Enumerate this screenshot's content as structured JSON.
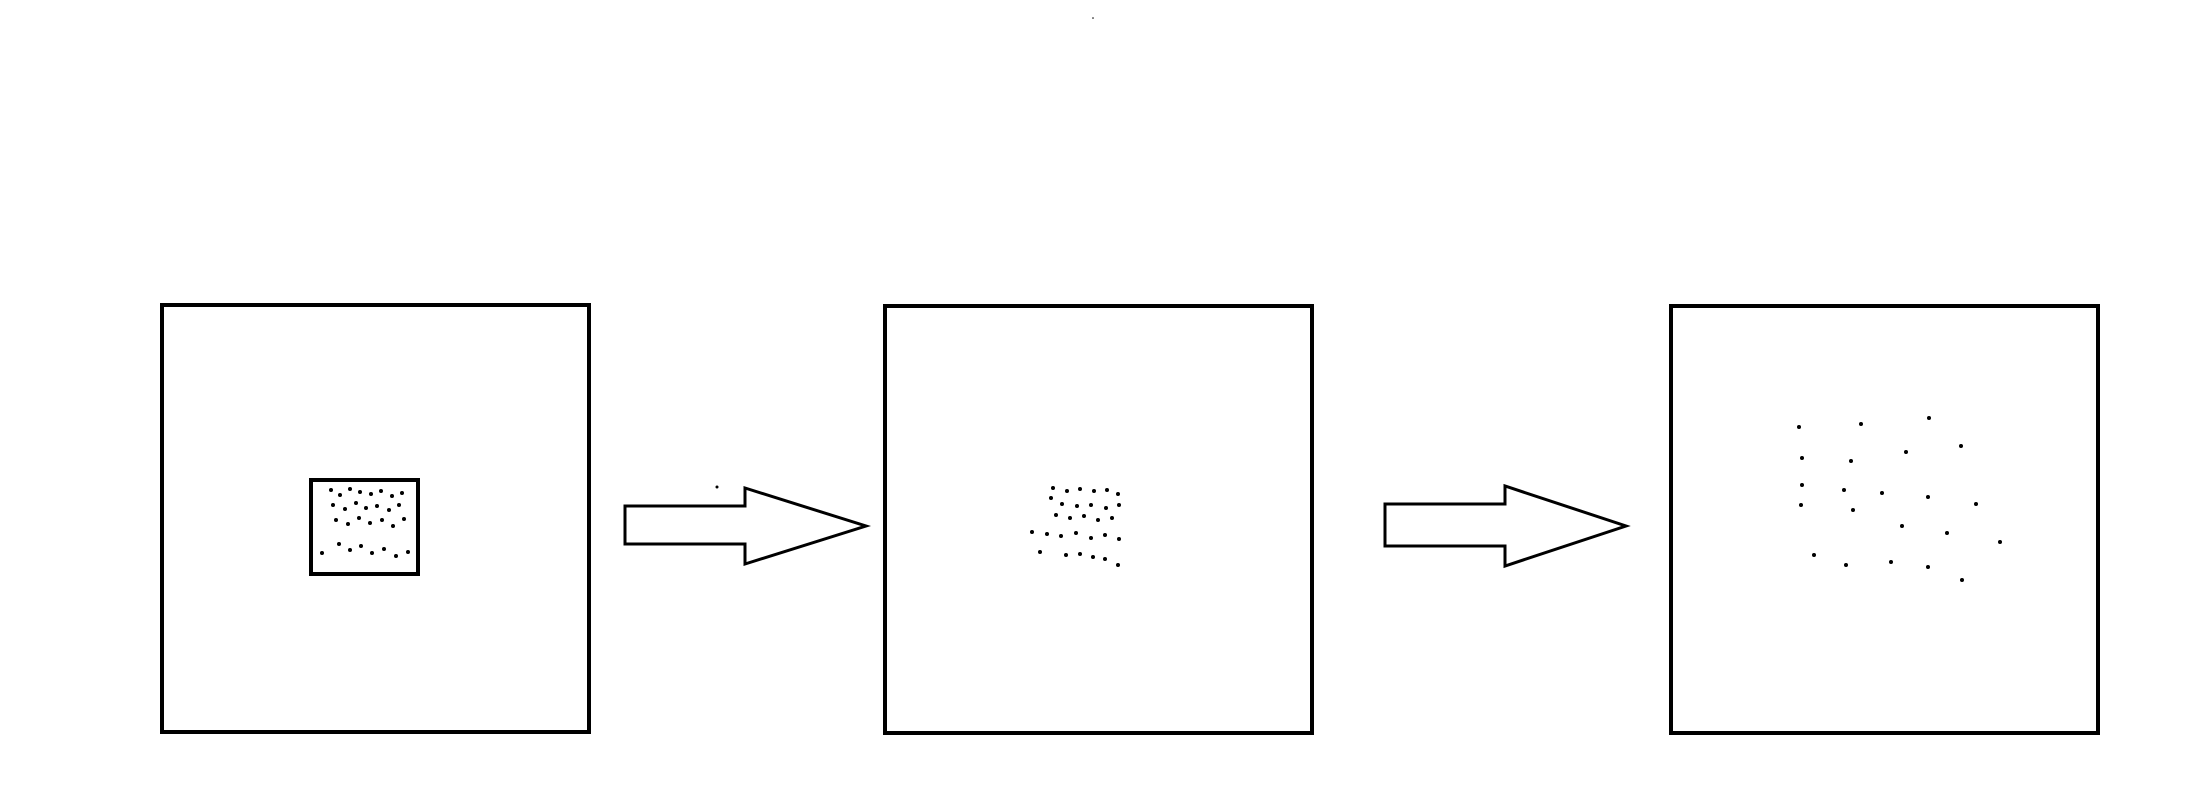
{
  "diagram": {
    "colors": {
      "stroke": "#000000",
      "background": "#ffffff",
      "dot": "#000000"
    },
    "stages": [
      {
        "id": "stage-1",
        "particles": 30,
        "state": "confined in inner box"
      },
      {
        "id": "stage-2",
        "particles": 30,
        "state": "cluster released"
      },
      {
        "id": "stage-3",
        "particles": 22,
        "state": "particles spread out"
      }
    ],
    "arrows": [
      {
        "from": "stage-1",
        "to": "stage-2"
      },
      {
        "from": "stage-2",
        "to": "stage-3"
      }
    ]
  }
}
